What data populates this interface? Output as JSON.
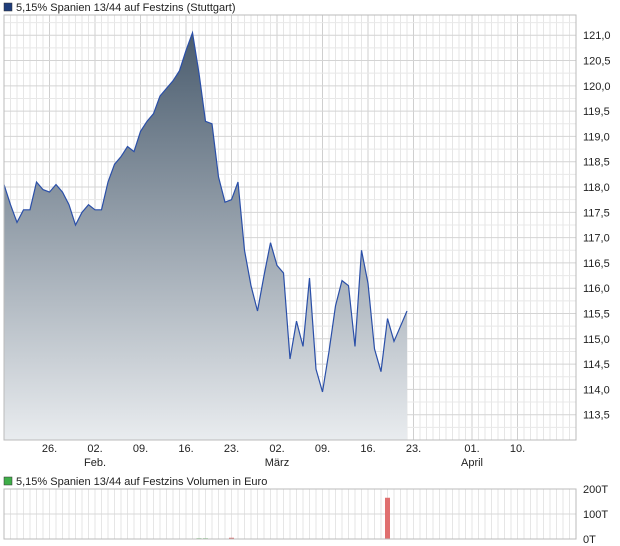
{
  "chart_data": [
    {
      "type": "area",
      "title": "5,15% Spanien 13/44 auf Festzins (Stuttgart)",
      "legend_color": "#1f3d7a",
      "line_color": "#2a4fa8",
      "fill_top_color": "#4a5c6e",
      "fill_bottom_color": "#e9ecef",
      "grid": true,
      "ylim": [
        113.0,
        121.4
      ],
      "y_ticks": [
        "113,5",
        "114,0",
        "114,5",
        "115,0",
        "115,5",
        "116,0",
        "116,5",
        "117,0",
        "117,5",
        "118,0",
        "118,5",
        "119,0",
        "119,5",
        "120,0",
        "120,5",
        "121,0"
      ],
      "y_tick_values": [
        113.5,
        114.0,
        114.5,
        115.0,
        115.5,
        116.0,
        116.5,
        117.0,
        117.5,
        118.0,
        118.5,
        119.0,
        119.5,
        120.0,
        120.5,
        121.0
      ],
      "x_ticks": [
        {
          "day": 5,
          "label": "26."
        },
        {
          "day": 12,
          "label": "02."
        },
        {
          "day": 19,
          "label": "09."
        },
        {
          "day": 26,
          "label": "16."
        },
        {
          "day": 33,
          "label": "23."
        },
        {
          "day": 40,
          "label": "02."
        },
        {
          "day": 47,
          "label": "09."
        },
        {
          "day": 54,
          "label": "16."
        },
        {
          "day": 61,
          "label": "23."
        },
        {
          "day": 70,
          "label": "01."
        },
        {
          "day": 77,
          "label": "10."
        }
      ],
      "month_labels": [
        {
          "day": 12,
          "label": "Feb."
        },
        {
          "day": 40,
          "label": "März"
        },
        {
          "day": 70,
          "label": "April"
        }
      ],
      "x_range": [
        -2,
        86
      ],
      "series": [
        {
          "points": [
            [
              -2,
              118.05
            ],
            [
              -1,
              117.65
            ],
            [
              0,
              117.3
            ],
            [
              1,
              117.55
            ],
            [
              2,
              117.55
            ],
            [
              3,
              118.1
            ],
            [
              4,
              117.95
            ],
            [
              5,
              117.9
            ],
            [
              6,
              118.05
            ],
            [
              7,
              117.9
            ],
            [
              8,
              117.65
            ],
            [
              9,
              117.25
            ],
            [
              10,
              117.5
            ],
            [
              11,
              117.65
            ],
            [
              12,
              117.55
            ],
            [
              13,
              117.55
            ],
            [
              14,
              118.1
            ],
            [
              15,
              118.45
            ],
            [
              16,
              118.6
            ],
            [
              17,
              118.8
            ],
            [
              18,
              118.7
            ],
            [
              19,
              119.1
            ],
            [
              20,
              119.3
            ],
            [
              21,
              119.45
            ],
            [
              22,
              119.8
            ],
            [
              23,
              119.95
            ],
            [
              24,
              120.1
            ],
            [
              25,
              120.3
            ],
            [
              26,
              120.7
            ],
            [
              27,
              121.05
            ],
            [
              28,
              120.25
            ],
            [
              29,
              119.3
            ],
            [
              30,
              119.25
            ],
            [
              31,
              118.2
            ],
            [
              32,
              117.7
            ],
            [
              33,
              117.75
            ],
            [
              34,
              118.1
            ],
            [
              35,
              116.75
            ],
            [
              36,
              116.05
            ],
            [
              37,
              115.55
            ],
            [
              38,
              116.25
            ],
            [
              39,
              116.9
            ],
            [
              40,
              116.45
            ],
            [
              41,
              116.3
            ],
            [
              42,
              114.6
            ],
            [
              43,
              115.35
            ],
            [
              44,
              114.85
            ],
            [
              45,
              116.2
            ],
            [
              46,
              114.4
            ],
            [
              47,
              113.95
            ],
            [
              48,
              114.75
            ],
            [
              49,
              115.65
            ],
            [
              50,
              116.15
            ],
            [
              51,
              116.05
            ],
            [
              52,
              114.85
            ],
            [
              53,
              116.75
            ],
            [
              54,
              116.1
            ],
            [
              55,
              114.8
            ],
            [
              56,
              114.35
            ],
            [
              57,
              115.4
            ],
            [
              58,
              114.95
            ],
            [
              59,
              115.25
            ],
            [
              60,
              115.55
            ]
          ]
        }
      ]
    },
    {
      "type": "bar",
      "title": "5,15% Spanien 13/44 auf Festzins Volumen in Euro",
      "legend_color": "#3fae49",
      "ylim": [
        0,
        200
      ],
      "y_ticks": [
        "0T",
        "100T",
        "200T"
      ],
      "y_tick_values": [
        0,
        100,
        200
      ],
      "bars": [
        {
          "day": 28,
          "value": 3,
          "color": "#5cbf5c"
        },
        {
          "day": 29,
          "value": 3,
          "color": "#5cbf5c"
        },
        {
          "day": 33,
          "value": 5,
          "color": "#d96a6a"
        },
        {
          "day": 57,
          "value": 165,
          "color": "#e07070"
        }
      ]
    }
  ]
}
